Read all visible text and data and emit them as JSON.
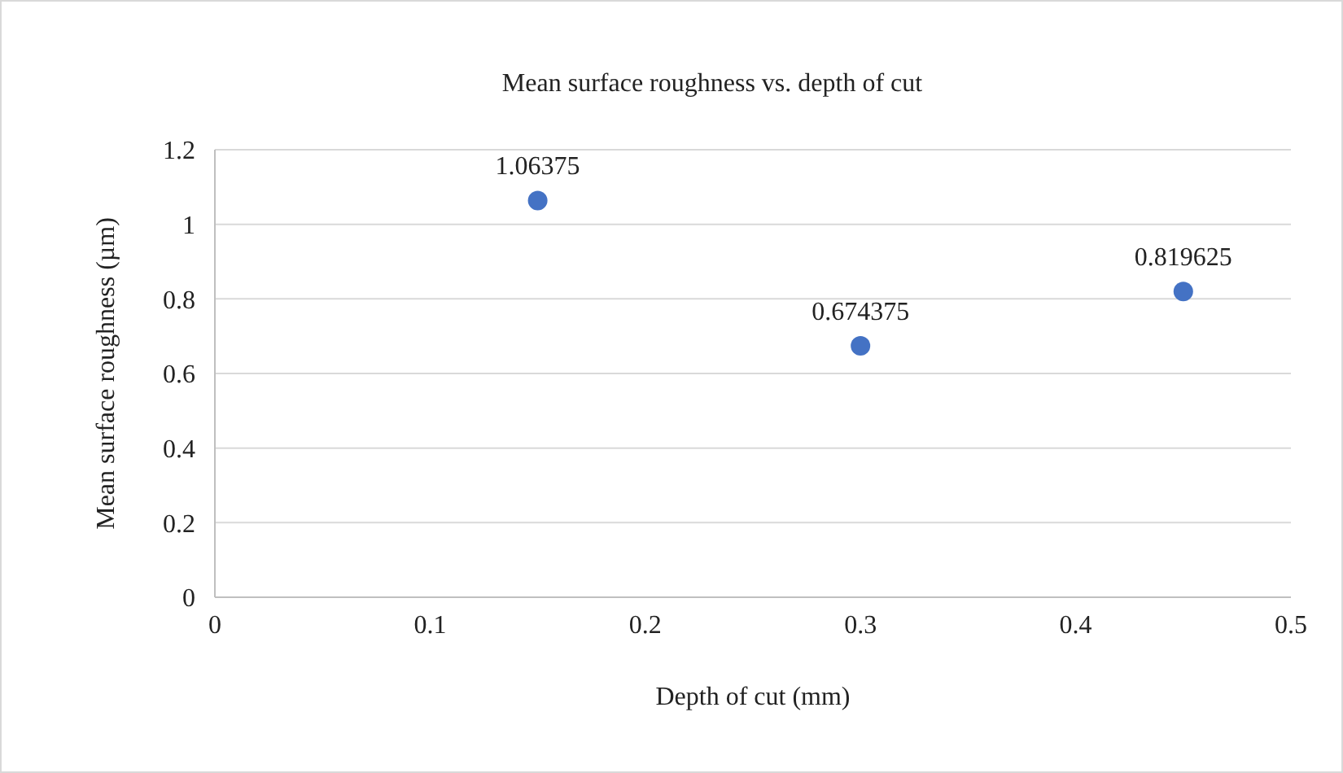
{
  "chart_data": {
    "type": "scatter",
    "title": "Mean surface roughness vs. depth of cut",
    "xlabel": "Depth of cut (mm)",
    "ylabel": "Mean surface roughness (µm)",
    "x": [
      0.15,
      0.3,
      0.45
    ],
    "series": [
      {
        "color": "#4472c4",
        "values": [
          1.06375,
          0.674375,
          0.819625
        ]
      }
    ],
    "xlim": [
      0,
      0.5
    ],
    "xticks": [
      0,
      0.1,
      0.2,
      0.3,
      0.4,
      0.5
    ],
    "ylim": [
      0,
      1.2
    ],
    "yticks": [
      0,
      0.2,
      0.4,
      0.6,
      0.8,
      1,
      1.2
    ],
    "grid": "y",
    "data_labels": true,
    "marker": "circle"
  }
}
